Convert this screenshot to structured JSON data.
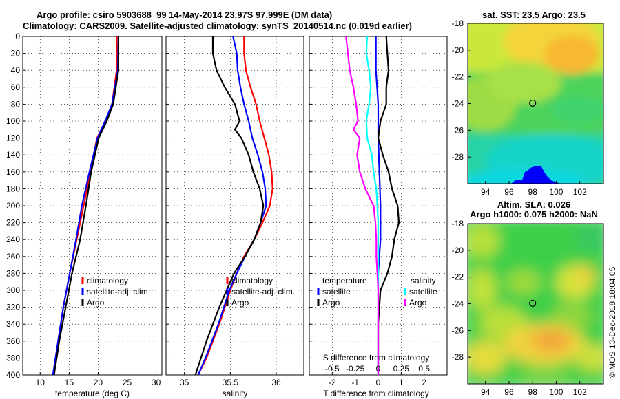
{
  "header": {
    "title_line1": "Argo profile: csiro 5903688_99 14-May-2014 23.97S 97.999E (DM data)",
    "title_line2": "Climatology: CARS2009. Satellite-adjusted climatology: synTS_20140514.nc (0.019d earlier)"
  },
  "colors": {
    "climatology": "#ff0000",
    "satellite": "#0000ff",
    "argo": "#000000",
    "argo_salinity": "#ff00ff",
    "satellite_salinity": "#00ffff"
  },
  "chart_data": [
    {
      "type": "line",
      "id": "temperature",
      "xlabel": "temperature (deg C)",
      "ylabel": "",
      "xlim": [
        7,
        31
      ],
      "ylim": [
        400,
        0
      ],
      "xticks": [
        10,
        15,
        20,
        25,
        30
      ],
      "yticks": [
        0,
        20,
        40,
        60,
        80,
        100,
        120,
        140,
        160,
        180,
        200,
        220,
        240,
        260,
        280,
        300,
        320,
        340,
        360,
        380,
        400
      ],
      "legend": {
        "position": "bottom-right",
        "entries": [
          "climatology",
          "satellite-adj. clim.",
          "Argo"
        ]
      },
      "series": [
        {
          "name": "climatology",
          "color_key": "climatology",
          "depth": [
            0,
            40,
            80,
            100,
            120,
            160,
            200,
            240,
            280,
            320,
            360,
            400
          ],
          "values": [
            23.2,
            23.2,
            22.4,
            21.3,
            19.8,
            18.7,
            17.5,
            16.3,
            15.1,
            14.0,
            13.1,
            12.3
          ]
        },
        {
          "name": "satellite-adj. clim.",
          "color_key": "satellite",
          "depth": [
            0,
            40,
            80,
            100,
            120,
            160,
            200,
            240,
            280,
            320,
            360,
            400
          ],
          "values": [
            23.5,
            23.4,
            22.4,
            21.2,
            19.9,
            18.5,
            17.2,
            16.2,
            15.1,
            14.0,
            13.1,
            12.2
          ]
        },
        {
          "name": "Argo",
          "color_key": "argo",
          "depth": [
            0,
            40,
            80,
            100,
            120,
            160,
            200,
            240,
            280,
            320,
            360,
            400
          ],
          "values": [
            23.5,
            23.5,
            22.6,
            21.5,
            20.1,
            18.8,
            17.9,
            16.9,
            15.5,
            14.4,
            13.3,
            12.4
          ]
        }
      ]
    },
    {
      "type": "line",
      "id": "salinity",
      "xlabel": "salinity",
      "ylabel": "",
      "xlim": [
        34.8,
        36.3
      ],
      "ylim": [
        400,
        0
      ],
      "xticks": [
        35,
        35.5,
        36
      ],
      "xtick_labels": [
        "35",
        "35.5",
        "36"
      ],
      "legend": {
        "position": "bottom-right",
        "entries": [
          "climatology",
          "satellite-adj. clim.",
          "Argo"
        ]
      },
      "series": [
        {
          "name": "climatology",
          "color_key": "climatology",
          "depth": [
            0,
            20,
            40,
            60,
            80,
            100,
            120,
            140,
            160,
            180,
            200,
            220,
            240,
            260,
            280,
            300,
            320,
            340,
            360,
            380,
            400
          ],
          "values": [
            35.65,
            35.65,
            35.67,
            35.72,
            35.78,
            35.82,
            35.87,
            35.92,
            35.95,
            35.96,
            35.93,
            35.85,
            35.76,
            35.65,
            35.57,
            35.5,
            35.44,
            35.38,
            35.31,
            35.24,
            35.15
          ]
        },
        {
          "name": "satellite-adj. clim.",
          "color_key": "satellite",
          "depth": [
            0,
            20,
            40,
            60,
            80,
            100,
            120,
            140,
            160,
            180,
            200,
            220,
            240,
            260,
            280,
            300,
            320,
            340,
            360,
            380,
            400
          ],
          "values": [
            35.53,
            35.57,
            35.58,
            35.61,
            35.65,
            35.7,
            35.74,
            35.8,
            35.85,
            35.88,
            35.89,
            35.83,
            35.76,
            35.66,
            35.57,
            35.49,
            35.43,
            35.37,
            35.3,
            35.23,
            35.15
          ]
        },
        {
          "name": "Argo",
          "color_key": "argo",
          "depth": [
            0,
            20,
            40,
            60,
            80,
            100,
            110,
            120,
            140,
            160,
            180,
            200,
            220,
            240,
            260,
            280,
            300,
            320,
            340,
            360,
            380,
            400
          ],
          "values": [
            35.31,
            35.31,
            35.35,
            35.44,
            35.55,
            35.6,
            35.55,
            35.62,
            35.7,
            35.75,
            35.82,
            35.86,
            35.83,
            35.76,
            35.66,
            35.54,
            35.46,
            35.38,
            35.31,
            35.24,
            35.18,
            35.12
          ]
        }
      ]
    },
    {
      "type": "line",
      "id": "difference",
      "xlabel": "T difference from climatology",
      "ylabel": "",
      "xlim": [
        -3,
        3
      ],
      "ylim": [
        400,
        0
      ],
      "xticks": [
        -2,
        -1,
        0,
        1,
        2
      ],
      "top_scale": {
        "label": "S difference from climatology",
        "ticks": [
          "-0.5",
          "-0.25",
          "0",
          "0.25",
          "0.5"
        ],
        "tick_values": [
          -0.5,
          -0.25,
          0,
          0.25,
          0.5
        ]
      },
      "legend": {
        "position": "bottom",
        "temperature_title": "temperature",
        "salinity_title": "salinity",
        "entries": [
          "satellite",
          "Argo",
          "satellite",
          "Argo"
        ]
      },
      "series": [
        {
          "name": "T satellite",
          "color_key": "satellite",
          "depth": [
            0,
            40,
            80,
            120,
            160,
            200,
            240,
            280,
            320,
            360,
            400
          ],
          "values": [
            -0.1,
            -0.1,
            0,
            0,
            0.05,
            0.1,
            0.1,
            0,
            0,
            0,
            0
          ]
        },
        {
          "name": "T Argo",
          "color_key": "argo",
          "depth": [
            0,
            20,
            40,
            60,
            80,
            100,
            120,
            140,
            160,
            180,
            200,
            220,
            240,
            260,
            280,
            300,
            320,
            340,
            360,
            380,
            400
          ],
          "values": [
            0.35,
            0.4,
            0.45,
            0.35,
            0.35,
            0.1,
            0,
            0.2,
            0.45,
            0.6,
            0.85,
            0.9,
            0.7,
            0.6,
            0.4,
            0.1,
            0.05,
            0,
            0,
            0,
            0
          ]
        },
        {
          "name": "S satellite",
          "color_key": "satellite_salinity",
          "depth": [
            0,
            20,
            40,
            60,
            80,
            100,
            120,
            140,
            160,
            180,
            200,
            220,
            240,
            260,
            280,
            300,
            320,
            340,
            360,
            380,
            400
          ],
          "values": [
            -0.12,
            -0.13,
            -0.1,
            -0.08,
            -0.1,
            -0.13,
            -0.12,
            -0.07,
            -0.05,
            -0.02,
            -0.01,
            0,
            0,
            0,
            0,
            0,
            0,
            0,
            0,
            0,
            0
          ]
        },
        {
          "name": "S Argo",
          "color_key": "argo_salinity",
          "depth": [
            0,
            20,
            40,
            60,
            80,
            100,
            110,
            120,
            140,
            160,
            180,
            200,
            220,
            240,
            260,
            280,
            300,
            320,
            340,
            360,
            380,
            400
          ],
          "values": [
            -0.35,
            -0.33,
            -0.31,
            -0.27,
            -0.24,
            -0.22,
            -0.27,
            -0.2,
            -0.23,
            -0.2,
            -0.14,
            -0.05,
            -0.03,
            -0.02,
            -0.02,
            -0.01,
            0,
            0,
            0,
            0,
            0,
            0
          ]
        }
      ]
    },
    {
      "type": "heatmap",
      "id": "sst_map",
      "title": "sat. SST: 23.5 Argo: 23.5",
      "xlim": [
        92.5,
        104
      ],
      "ylim": [
        -30,
        -18
      ],
      "xticks": [
        94,
        96,
        98,
        100,
        102
      ],
      "yticks": [
        -18,
        -20,
        -22,
        -24,
        -26,
        -28
      ],
      "marker": {
        "lon": 97.999,
        "lat": -23.97
      }
    },
    {
      "type": "heatmap",
      "id": "sla_map",
      "title_line1": "Altim. SLA: 0.026",
      "title_line2": "Argo h1000: 0.075 h2000: NaN",
      "xlim": [
        92.5,
        104
      ],
      "ylim": [
        -30,
        -18
      ],
      "xticks": [
        94,
        96,
        98,
        100,
        102
      ],
      "yticks": [
        -18,
        -20,
        -22,
        -24,
        -26,
        -28
      ],
      "marker": {
        "lon": 97.999,
        "lat": -23.97
      }
    }
  ],
  "credit": "©IMOS 13-Dec-2018 18:04:05"
}
